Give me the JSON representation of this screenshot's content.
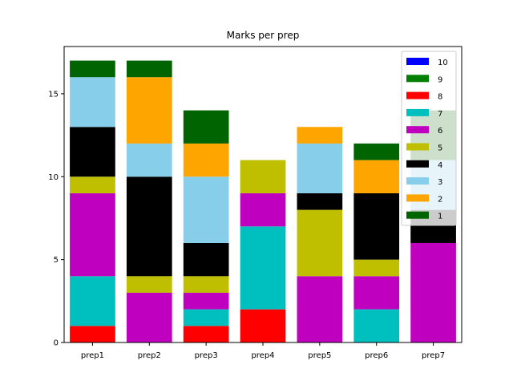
{
  "chart_data": {
    "type": "bar",
    "stacked": true,
    "title": "Marks per prep",
    "xlabel": "",
    "ylabel": "",
    "categories": [
      "prep1",
      "prep2",
      "prep3",
      "prep4",
      "prep5",
      "prep6",
      "prep7"
    ],
    "ylim": [
      0,
      17.85
    ],
    "yticks": [
      0,
      5,
      10,
      15
    ],
    "legend_position": "top-right",
    "series": [
      {
        "name": "8",
        "color": "#ff0000",
        "values": [
          1,
          0,
          1,
          2,
          0,
          0,
          0
        ]
      },
      {
        "name": "7",
        "color": "#00bfbf",
        "values": [
          3,
          0,
          1,
          5,
          0,
          2,
          0
        ]
      },
      {
        "name": "6",
        "color": "#bf00bf",
        "values": [
          5,
          3,
          1,
          2,
          4,
          2,
          6
        ]
      },
      {
        "name": "5",
        "color": "#bfbf00",
        "values": [
          1,
          1,
          1,
          2,
          4,
          1,
          0
        ]
      },
      {
        "name": "4",
        "color": "#000000",
        "values": [
          3,
          6,
          2,
          0,
          1,
          4,
          2
        ]
      },
      {
        "name": "3",
        "color": "#87ceeb",
        "values": [
          3,
          2,
          4,
          0,
          3,
          0,
          3
        ]
      },
      {
        "name": "2",
        "color": "#ffa500",
        "values": [
          0,
          4,
          2,
          0,
          1,
          2,
          0
        ]
      },
      {
        "name": "1",
        "color": "#006400",
        "values": [
          1,
          1,
          2,
          0,
          0,
          1,
          3
        ]
      },
      {
        "name": "9",
        "color": "#008000",
        "values": [
          0,
          0,
          0,
          0,
          0,
          0,
          0
        ]
      },
      {
        "name": "10",
        "color": "#0000ff",
        "values": [
          0,
          0,
          0,
          0,
          0,
          0,
          0
        ]
      }
    ],
    "legend_order": [
      "10",
      "9",
      "8",
      "7",
      "6",
      "5",
      "4",
      "3",
      "2",
      "1"
    ]
  }
}
